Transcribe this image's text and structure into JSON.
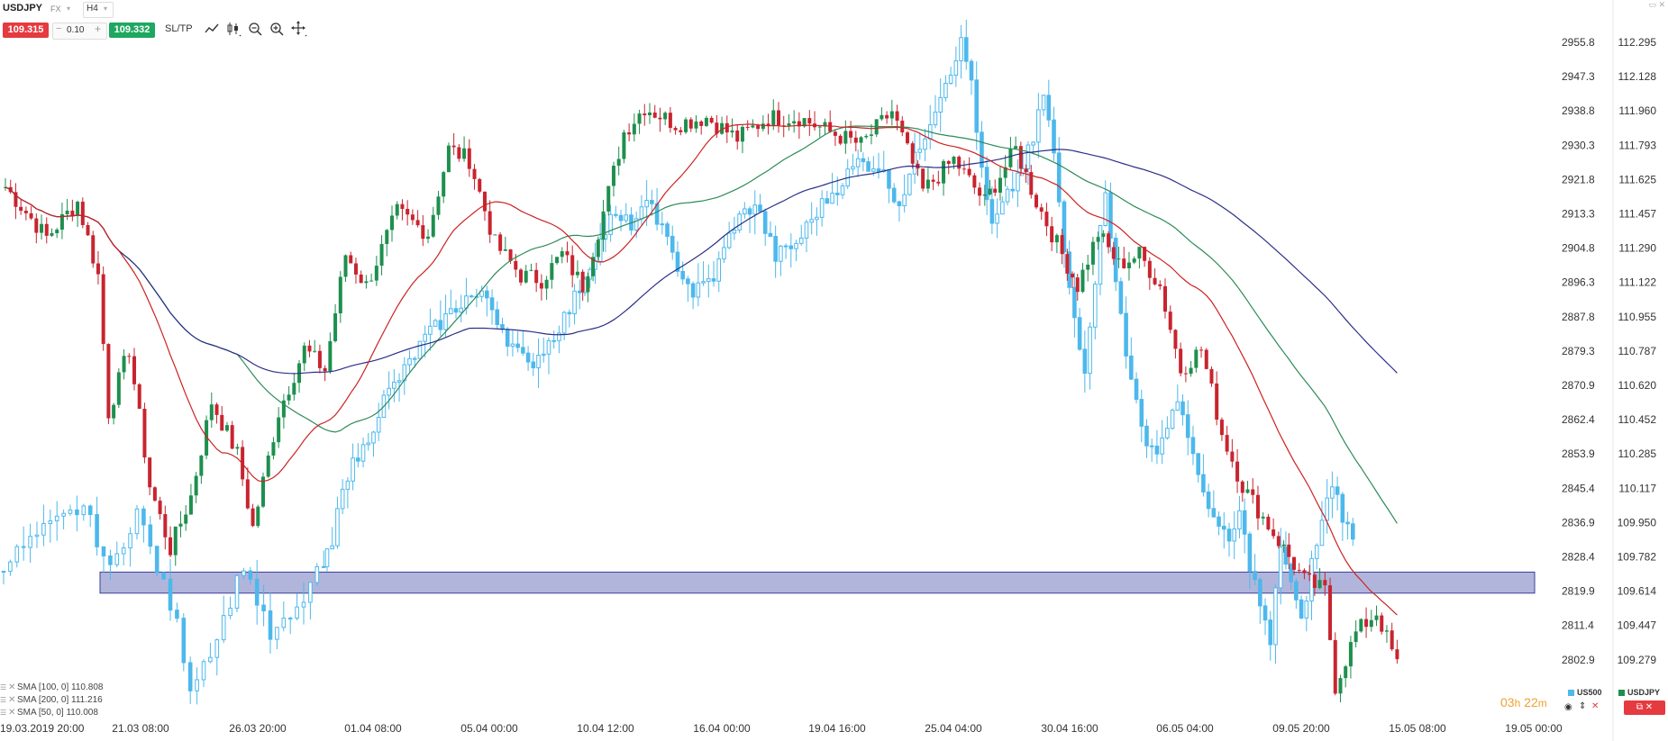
{
  "toolbar": {
    "symbol": "USDJPY",
    "market": "FX",
    "timeframe": "H4",
    "sell_price": "109.315",
    "volume": "0.10",
    "buy_price": "109.332",
    "sltp_label": "SL/TP",
    "minus": "−",
    "plus": "+"
  },
  "chart_data": {
    "type": "candlestick",
    "title": "",
    "main_instrument": "USDJPY",
    "overlay_instrument": "US500",
    "y_right": {
      "instrument": "USDJPY",
      "ticks": [
        "112.295",
        "112.128",
        "111.960",
        "111.793",
        "111.625",
        "111.457",
        "111.290",
        "111.122",
        "110.955",
        "110.787",
        "110.620",
        "110.452",
        "110.285",
        "110.117",
        "109.950",
        "109.782",
        "109.614",
        "109.447",
        "109.279"
      ],
      "range": [
        109.15,
        112.38
      ]
    },
    "y_left": {
      "instrument": "US500",
      "ticks": [
        "2955.8",
        "2947.3",
        "2938.8",
        "2930.3",
        "2921.8",
        "2913.3",
        "2904.8",
        "2896.3",
        "2887.8",
        "2879.3",
        "2870.9",
        "2862.4",
        "2853.9",
        "2845.4",
        "2836.9",
        "2828.4",
        "2819.9",
        "2811.4",
        "2802.9"
      ],
      "range": [
        2795.0,
        2961.0
      ]
    },
    "x_ticks": [
      "19.03.2019 20:00",
      "21.03 08:00",
      "26.03 20:00",
      "01.04 08:00",
      "05.04 00:00",
      "10.04 12:00",
      "16.04 00:00",
      "19.04 16:00",
      "25.04 04:00",
      "30.04 16:00",
      "06.05 04:00",
      "09.05 20:00",
      "15.05 08:00",
      "19.05 00:00"
    ],
    "usdjpy_anchors": [
      [
        0,
        111.62
      ],
      [
        8,
        111.38
      ],
      [
        14,
        111.55
      ],
      [
        18,
        111.2
      ],
      [
        20,
        110.55
      ],
      [
        24,
        110.85
      ],
      [
        28,
        110.2
      ],
      [
        32,
        109.9
      ],
      [
        36,
        110.15
      ],
      [
        40,
        110.6
      ],
      [
        45,
        110.35
      ],
      [
        48,
        110.0
      ],
      [
        53,
        110.55
      ],
      [
        58,
        110.85
      ],
      [
        62,
        110.75
      ],
      [
        66,
        111.3
      ],
      [
        70,
        111.15
      ],
      [
        76,
        111.5
      ],
      [
        82,
        111.4
      ],
      [
        86,
        111.8
      ],
      [
        90,
        111.75
      ],
      [
        95,
        111.35
      ],
      [
        100,
        111.2
      ],
      [
        104,
        111.18
      ],
      [
        108,
        111.3
      ],
      [
        112,
        111.15
      ],
      [
        116,
        111.5
      ],
      [
        120,
        111.88
      ],
      [
        124,
        112.0
      ],
      [
        130,
        111.92
      ],
      [
        136,
        111.95
      ],
      [
        142,
        111.85
      ],
      [
        148,
        111.95
      ],
      [
        154,
        111.95
      ],
      [
        160,
        111.88
      ],
      [
        166,
        111.82
      ],
      [
        172,
        111.98
      ],
      [
        178,
        111.6
      ],
      [
        184,
        111.75
      ],
      [
        190,
        111.55
      ],
      [
        196,
        111.8
      ],
      [
        200,
        111.55
      ],
      [
        204,
        111.35
      ],
      [
        208,
        111.15
      ],
      [
        212,
        111.4
      ],
      [
        216,
        111.25
      ],
      [
        220,
        111.3
      ],
      [
        224,
        111.15
      ],
      [
        228,
        110.75
      ],
      [
        232,
        110.85
      ],
      [
        236,
        110.45
      ],
      [
        240,
        110.2
      ],
      [
        244,
        110.05
      ],
      [
        248,
        109.9
      ],
      [
        252,
        109.75
      ],
      [
        256,
        109.7
      ],
      [
        258,
        109.25
      ],
      [
        262,
        109.5
      ],
      [
        266,
        109.6
      ],
      [
        270,
        109.35
      ]
    ],
    "us500_anchors": [
      [
        0,
        2830
      ],
      [
        6,
        2838
      ],
      [
        12,
        2844
      ],
      [
        16,
        2828
      ],
      [
        20,
        2843
      ],
      [
        26,
        2815
      ],
      [
        28,
        2800
      ],
      [
        32,
        2812
      ],
      [
        36,
        2830
      ],
      [
        40,
        2812
      ],
      [
        44,
        2818
      ],
      [
        46,
        2825
      ],
      [
        50,
        2834
      ],
      [
        52,
        2850
      ],
      [
        56,
        2858
      ],
      [
        60,
        2870
      ],
      [
        64,
        2877
      ],
      [
        68,
        2885
      ],
      [
        72,
        2890
      ],
      [
        76,
        2895
      ],
      [
        80,
        2895
      ],
      [
        84,
        2885
      ],
      [
        88,
        2878
      ],
      [
        92,
        2884
      ],
      [
        96,
        2892
      ],
      [
        100,
        2903
      ],
      [
        104,
        2914
      ],
      [
        108,
        2913
      ],
      [
        112,
        2918
      ],
      [
        116,
        2905
      ],
      [
        120,
        2896
      ],
      [
        124,
        2900
      ],
      [
        128,
        2913
      ],
      [
        132,
        2918
      ],
      [
        136,
        2905
      ],
      [
        140,
        2908
      ],
      [
        144,
        2916
      ],
      [
        148,
        2922
      ],
      [
        152,
        2928
      ],
      [
        156,
        2927
      ],
      [
        160,
        2918
      ],
      [
        164,
        2932
      ],
      [
        168,
        2945
      ],
      [
        172,
        2957
      ],
      [
        174,
        2948
      ],
      [
        176,
        2925
      ],
      [
        178,
        2912
      ],
      [
        182,
        2922
      ],
      [
        186,
        2933
      ],
      [
        188,
        2945
      ],
      [
        190,
        2930
      ],
      [
        192,
        2905
      ],
      [
        194,
        2890
      ],
      [
        196,
        2878
      ],
      [
        198,
        2900
      ],
      [
        200,
        2922
      ],
      [
        202,
        2900
      ],
      [
        204,
        2880
      ],
      [
        206,
        2870
      ],
      [
        208,
        2860
      ],
      [
        210,
        2855
      ],
      [
        212,
        2865
      ],
      [
        214,
        2870
      ],
      [
        216,
        2862
      ],
      [
        218,
        2850
      ],
      [
        220,
        2845
      ],
      [
        222,
        2838
      ],
      [
        224,
        2835
      ],
      [
        226,
        2842
      ],
      [
        228,
        2830
      ],
      [
        230,
        2820
      ],
      [
        232,
        2810
      ],
      [
        234,
        2835
      ],
      [
        236,
        2825
      ],
      [
        238,
        2815
      ],
      [
        240,
        2830
      ],
      [
        242,
        2840
      ],
      [
        244,
        2850
      ],
      [
        246,
        2842
      ],
      [
        248,
        2835
      ]
    ],
    "us500_gap_after_index": 48,
    "sma": [
      {
        "name": "SMA [100, 0]",
        "value": "110.808",
        "color": "#2e8b57"
      },
      {
        "name": "SMA [200, 0]",
        "value": "111.216",
        "color": "#2b2f86"
      },
      {
        "name": "SMA [50, 0]",
        "value": "110.008",
        "color": "#cc2222"
      }
    ],
    "zone": {
      "from": 109.69,
      "to": 109.79,
      "color": "#9296cc"
    },
    "colors": {
      "up": "#1e8f4e",
      "down": "#c8242f",
      "us500": "#4db8ec"
    },
    "grid": false
  },
  "timer": {
    "hours": "03",
    "h_unit": "h",
    "minutes": "22",
    "m_unit": "m"
  },
  "legend": {
    "us500": "US500",
    "usdjpy": "USDJPY"
  },
  "icons": [
    "line-chart-icon",
    "candles-icon",
    "zoom-out-icon",
    "zoom-in-icon",
    "crosshair-icon",
    "eye-icon",
    "sort-icon",
    "close-icon",
    "settings-icon"
  ]
}
